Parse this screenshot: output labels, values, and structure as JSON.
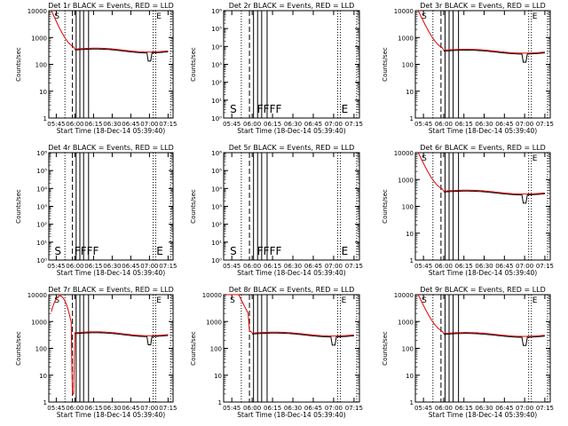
{
  "figure": {
    "panels_note": "3x3 grid of detector count-rate plots"
  },
  "chart_data": [
    {
      "type": "line",
      "title": "Det 1r BLACK = Events, RED = LLD",
      "ylabel": "Counts/sec",
      "xlabel": "Start Time (18-Dec-14 05:39:40)",
      "xticks": [
        "05:45",
        "06:00",
        "06:15",
        "06:30",
        "06:45",
        "07:00",
        "07:15"
      ],
      "yscale": "log",
      "ylim": [
        1,
        10000
      ],
      "yticks": [
        "1",
        "10",
        "100",
        "1000",
        "10000"
      ],
      "has_data": true,
      "letters": [
        {
          "text": "S",
          "x": "05:45"
        },
        {
          "text": "E",
          "x": "07:07"
        }
      ],
      "red_spike_profile": "decay",
      "flat_level": 330,
      "dip_at": "07:00"
    },
    {
      "type": "line",
      "title": "Det 2r BLACK = Events, RED = LLD",
      "ylabel": "Counts/sec",
      "xlabel": "Start Time (18-Dec-14 05:39:40)",
      "xticks": [
        "05:45",
        "06:00",
        "06:15",
        "06:30",
        "06:45",
        "07:00",
        "07:15"
      ],
      "yscale": "log",
      "ylim": [
        1,
        1000000.0
      ],
      "yticks": [
        "10⁰",
        "10¹",
        "10²",
        "10³",
        "10⁴",
        "10⁵",
        "10⁶"
      ],
      "has_data": false,
      "letters": [
        {
          "text": "S",
          "x": "05:45"
        },
        {
          "text": "FFFF",
          "x": "06:05"
        },
        {
          "text": "E",
          "x": "07:07"
        }
      ]
    },
    {
      "type": "line",
      "title": "Det 3r BLACK = Events, RED = LLD",
      "ylabel": "Counts/sec",
      "xlabel": "Start Time (18-Dec-14 05:39:40)",
      "xticks": [
        "05:45",
        "06:00",
        "06:15",
        "06:30",
        "06:45",
        "07:00",
        "07:15"
      ],
      "yscale": "log",
      "ylim": [
        1,
        10000
      ],
      "yticks": [
        "1",
        "10",
        "100",
        "1000",
        "10000"
      ],
      "has_data": true,
      "letters": [
        {
          "text": "S",
          "x": "05:45"
        },
        {
          "text": "E",
          "x": "07:07"
        }
      ],
      "red_spike_profile": "early",
      "flat_level": 300,
      "dip_at": "07:00"
    },
    {
      "type": "line",
      "title": "Det 4r BLACK = Events, RED = LLD",
      "ylabel": "Counts/sec",
      "xlabel": "Start Time (18-Dec-14 05:39:40)",
      "xticks": [
        "05:45",
        "06:00",
        "06:15",
        "06:30",
        "06:45",
        "07:00",
        "07:15"
      ],
      "yscale": "log",
      "ylim": [
        1,
        1000000.0
      ],
      "yticks": [
        "10⁰",
        "10¹",
        "10²",
        "10³",
        "10⁴",
        "10⁵",
        "10⁶"
      ],
      "has_data": false,
      "letters": [
        {
          "text": "S",
          "x": "05:45"
        },
        {
          "text": "FFFF",
          "x": "06:01"
        },
        {
          "text": "E",
          "x": "07:07"
        }
      ]
    },
    {
      "type": "line",
      "title": "Det 5r BLACK = Events, RED = LLD",
      "ylabel": "Counts/sec",
      "xlabel": "Start Time (18-Dec-14 05:39:40)",
      "xticks": [
        "05:45",
        "06:00",
        "06:15",
        "06:30",
        "06:45",
        "07:00",
        "07:15"
      ],
      "yscale": "log",
      "ylim": [
        1,
        1000000.0
      ],
      "yticks": [
        "10⁰",
        "10¹",
        "10²",
        "10³",
        "10⁴",
        "10⁵",
        "10⁶"
      ],
      "has_data": false,
      "letters": [
        {
          "text": "S",
          "x": "05:45"
        },
        {
          "text": "FFFF",
          "x": "06:05"
        },
        {
          "text": "E",
          "x": "07:07"
        }
      ]
    },
    {
      "type": "line",
      "title": "Det 6r BLACK = Events, RED = LLD",
      "ylabel": "Counts/sec",
      "xlabel": "Start Time (18-Dec-14 05:39:40)",
      "xticks": [
        "05:45",
        "06:00",
        "06:15",
        "06:30",
        "06:45",
        "07:00",
        "07:15"
      ],
      "yscale": "log",
      "ylim": [
        1,
        10000
      ],
      "yticks": [
        "1",
        "10",
        "100",
        "1000",
        "10000"
      ],
      "has_data": true,
      "letters": [
        {
          "text": "S",
          "x": "05:45"
        },
        {
          "text": "E",
          "x": "07:07"
        }
      ],
      "red_spike_profile": "early",
      "flat_level": 330,
      "dip_at": "07:00"
    },
    {
      "type": "line",
      "title": "Det 7r BLACK = Events, RED = LLD",
      "ylabel": "Counts/sec",
      "xlabel": "Start Time (18-Dec-14 05:39:40)",
      "xticks": [
        "05:45",
        "06:00",
        "06:15",
        "06:30",
        "06:45",
        "07:00",
        "07:15"
      ],
      "yscale": "log",
      "ylim": [
        1,
        10000
      ],
      "yticks": [
        "1",
        "10",
        "100",
        "1000",
        "10000"
      ],
      "has_data": true,
      "letters": [
        {
          "text": "S",
          "x": "05:45"
        },
        {
          "text": "E",
          "x": "07:07"
        }
      ],
      "red_spike_profile": "wide",
      "flat_level": 340,
      "dip_at": "07:00"
    },
    {
      "type": "line",
      "title": "Det 8r BLACK = Events, RED = LLD",
      "ylabel": "Counts/sec",
      "xlabel": "Start Time (18-Dec-14 05:39:40)",
      "xticks": [
        "05:45",
        "06:00",
        "06:15",
        "06:30",
        "06:45",
        "07:00",
        "07:15"
      ],
      "yscale": "log",
      "ylim": [
        1,
        10000
      ],
      "yticks": [
        "1",
        "10",
        "100",
        "1000",
        "10000"
      ],
      "has_data": true,
      "letters": [
        {
          "text": "S",
          "x": "05:45"
        },
        {
          "text": "E",
          "x": "07:07"
        }
      ],
      "red_spike_profile": "late",
      "flat_level": 330,
      "dip_at": "07:00"
    },
    {
      "type": "line",
      "title": "Det 9r BLACK = Events, RED = LLD",
      "ylabel": "Counts/sec",
      "xlabel": "Start Time (18-Dec-14 05:39:40)",
      "xticks": [
        "05:45",
        "06:00",
        "06:15",
        "06:30",
        "06:45",
        "07:00",
        "07:15"
      ],
      "yscale": "log",
      "ylim": [
        1,
        10000
      ],
      "yticks": [
        "1",
        "10",
        "100",
        "1000",
        "10000"
      ],
      "has_data": true,
      "letters": [
        {
          "text": "S",
          "x": "05:45"
        },
        {
          "text": "E",
          "x": "07:07"
        }
      ],
      "red_spike_profile": "early",
      "flat_level": 320,
      "dip_at": "07:00"
    }
  ],
  "colors": {
    "events": "#000000",
    "lld": "#dd0000",
    "axes": "#000000"
  }
}
